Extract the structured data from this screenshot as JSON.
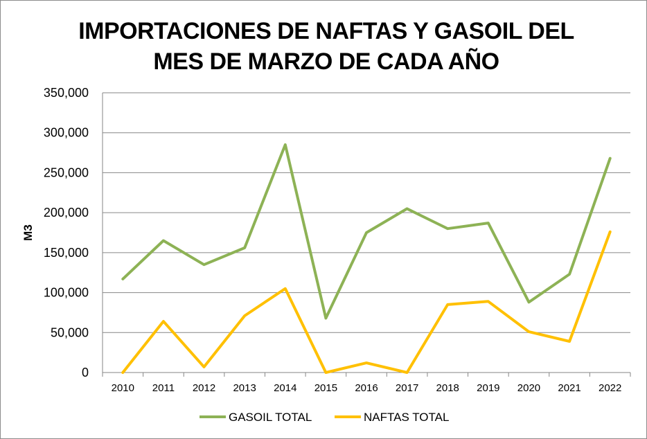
{
  "chart_data": {
    "type": "line",
    "title": [
      "IMPORTACIONES DE NAFTAS Y GASOIL DEL",
      "MES DE MARZO DE CADA AÑO"
    ],
    "ylabel": "M3",
    "xlabel": "",
    "categories": [
      "2010",
      "2011",
      "2012",
      "2013",
      "2014",
      "2015",
      "2016",
      "2017",
      "2018",
      "2019",
      "2020",
      "2021",
      "2022"
    ],
    "ylim": [
      0,
      350000
    ],
    "yticks": [
      0,
      50000,
      100000,
      150000,
      200000,
      250000,
      300000,
      350000
    ],
    "ytick_labels": [
      "0",
      "50,000",
      "100,000",
      "150,000",
      "200,000",
      "250,000",
      "300,000",
      "350,000"
    ],
    "grid": true,
    "legend_position": "bottom",
    "series": [
      {
        "name": "GASOIL TOTAL",
        "color": "#8db255",
        "values": [
          117000,
          165000,
          135000,
          156000,
          285000,
          68000,
          175000,
          205000,
          180000,
          187000,
          88000,
          123000,
          268000
        ]
      },
      {
        "name": "NAFTAS TOTAL",
        "color": "#ffc000",
        "values": [
          0,
          64000,
          7000,
          71000,
          105000,
          0,
          12000,
          0,
          85000,
          89000,
          51000,
          39000,
          176000
        ]
      }
    ]
  }
}
